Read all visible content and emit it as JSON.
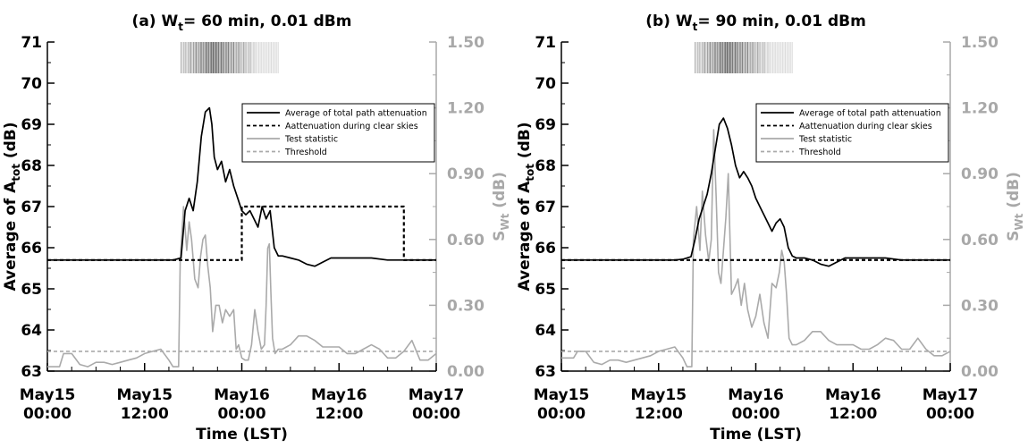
{
  "chart_data": [
    {
      "type": "line",
      "title_prefix": "(a) W",
      "title_sub": "t",
      "title_suffix": "= 60 min, 0.01 dBm",
      "xlabel": "Time (LST)",
      "ylabel_left": {
        "main": "Average of A",
        "sub": "tot",
        "unit": " (dB)"
      },
      "ylabel_right": {
        "main": "S",
        "sub": "Wt",
        "unit": " (dB)"
      },
      "x_unit": "hours since May15 00:00",
      "xlim": [
        0,
        48
      ],
      "ylim_left": [
        63,
        71
      ],
      "ylim_right": [
        0,
        1.5
      ],
      "x_ticks": [
        {
          "x": 0,
          "line1": "May15",
          "line2": "00:00"
        },
        {
          "x": 12,
          "line1": "May15",
          "line2": "12:00"
        },
        {
          "x": 24,
          "line1": "May16",
          "line2": "00:00"
        },
        {
          "x": 36,
          "line1": "May16",
          "line2": "12:00"
        },
        {
          "x": 48,
          "line1": "May17",
          "line2": "00:00"
        }
      ],
      "y_ticks_left": [
        "63",
        "64",
        "65",
        "66",
        "67",
        "68",
        "69",
        "70",
        "71"
      ],
      "y_ticks_right": [
        "0.00",
        "0.30",
        "0.60",
        "0.90",
        "1.20",
        "1.50"
      ],
      "legend": [
        {
          "label": "Average of total path attenuation",
          "color": "#000000",
          "dash": ""
        },
        {
          "label": "Aattenuation during clear skies",
          "color": "#000000",
          "dash": "4,3"
        },
        {
          "label": "Test statistic",
          "color": "#aaaaaa",
          "dash": ""
        },
        {
          "label": "Threshold",
          "color": "#aaaaaa",
          "dash": "4,3"
        }
      ],
      "legend_position": "upper-right",
      "rain_band_hours": [
        16.5,
        28.5
      ],
      "series": [
        {
          "axis": "left",
          "color": "#000000",
          "dash": "",
          "x": [
            0,
            2,
            4,
            6,
            8,
            10,
            12,
            14,
            15.5,
            16.5,
            17,
            17.5,
            18,
            18.5,
            19,
            19.5,
            20,
            20.3,
            20.6,
            21,
            21.5,
            22,
            22.5,
            23,
            23.5,
            24,
            24.5,
            25,
            25.5,
            26,
            26.5,
            27,
            27.5,
            28,
            28.5,
            29,
            30,
            31,
            32,
            33,
            34,
            35,
            36,
            38,
            40,
            42,
            44,
            46,
            48
          ],
          "y": [
            65.7,
            65.7,
            65.7,
            65.7,
            65.7,
            65.7,
            65.7,
            65.7,
            65.7,
            65.75,
            66.9,
            67.2,
            66.9,
            67.6,
            68.7,
            69.3,
            69.4,
            69.0,
            68.2,
            67.9,
            68.1,
            67.6,
            67.9,
            67.5,
            67.2,
            66.9,
            66.8,
            66.9,
            66.7,
            66.5,
            67.0,
            66.7,
            66.9,
            66.0,
            65.8,
            65.8,
            65.75,
            65.7,
            65.6,
            65.55,
            65.65,
            65.75,
            65.75,
            65.75,
            65.75,
            65.7,
            65.7,
            65.7,
            65.7
          ]
        },
        {
          "axis": "left",
          "color": "#000000",
          "dash": "4,3",
          "x": [
            0,
            24,
            24,
            44,
            44,
            48
          ],
          "y": [
            65.7,
            65.7,
            67.0,
            67.0,
            65.7,
            65.7
          ]
        },
        {
          "axis": "right",
          "color": "#aaaaaa",
          "dash": "",
          "x": [
            0,
            1,
            1.5,
            2,
            3,
            4,
            5,
            6,
            7,
            8,
            9,
            10,
            11,
            12,
            13,
            14,
            15,
            15.5,
            16.2,
            16.4,
            16.8,
            17.2,
            17.5,
            17.8,
            18.2,
            18.6,
            18.9,
            19.2,
            19.5,
            19.8,
            20.1,
            20.4,
            20.8,
            21.2,
            21.6,
            22,
            22.5,
            23,
            23.3,
            23.6,
            24,
            24.4,
            24.8,
            25.2,
            25.6,
            26,
            26.4,
            26.8,
            27,
            27.2,
            27.4,
            27.6,
            27.8,
            28.1,
            28.5,
            29,
            30,
            31,
            32,
            33,
            34,
            35,
            36,
            37,
            38,
            39,
            40,
            41,
            42,
            43,
            44,
            45,
            46,
            47,
            48
          ],
          "y": [
            0.02,
            0.02,
            0.02,
            0.08,
            0.08,
            0.03,
            0.02,
            0.04,
            0.04,
            0.03,
            0.04,
            0.05,
            0.06,
            0.08,
            0.09,
            0.1,
            0.05,
            0.02,
            0.02,
            0.5,
            0.75,
            0.55,
            0.68,
            0.6,
            0.42,
            0.38,
            0.52,
            0.6,
            0.62,
            0.48,
            0.38,
            0.18,
            0.3,
            0.3,
            0.22,
            0.28,
            0.25,
            0.28,
            0.1,
            0.12,
            0.06,
            0.05,
            0.05,
            0.12,
            0.28,
            0.18,
            0.1,
            0.12,
            0.3,
            0.56,
            0.58,
            0.35,
            0.15,
            0.08,
            0.1,
            0.1,
            0.12,
            0.16,
            0.16,
            0.14,
            0.11,
            0.11,
            0.11,
            0.08,
            0.08,
            0.1,
            0.12,
            0.1,
            0.06,
            0.06,
            0.09,
            0.14,
            0.05,
            0.05,
            0.08
          ]
        },
        {
          "axis": "right",
          "color": "#aaaaaa",
          "dash": "4,3",
          "x": [
            0,
            48
          ],
          "y": [
            0.09,
            0.09
          ]
        }
      ]
    },
    {
      "type": "line",
      "title_prefix": "(b) W",
      "title_sub": "t",
      "title_suffix": "= 90 min, 0.01 dBm",
      "xlabel": "Time (LST)",
      "ylabel_left": {
        "main": "Average of A",
        "sub": "tot",
        "unit": " (dB)"
      },
      "ylabel_right": {
        "main": "S",
        "sub": "Wt",
        "unit": " (dB)"
      },
      "x_unit": "hours since May15 00:00",
      "xlim": [
        0,
        48
      ],
      "ylim_left": [
        63,
        71
      ],
      "ylim_right": [
        0,
        1.5
      ],
      "x_ticks": [
        {
          "x": 0,
          "line1": "May15",
          "line2": "00:00"
        },
        {
          "x": 12,
          "line1": "May15",
          "line2": "12:00"
        },
        {
          "x": 24,
          "line1": "May16",
          "line2": "00:00"
        },
        {
          "x": 36,
          "line1": "May16",
          "line2": "12:00"
        },
        {
          "x": 48,
          "line1": "May17",
          "line2": "00:00"
        }
      ],
      "y_ticks_left": [
        "63",
        "64",
        "65",
        "66",
        "67",
        "68",
        "69",
        "70",
        "71"
      ],
      "y_ticks_right": [
        "0.00",
        "0.30",
        "0.60",
        "0.90",
        "1.20",
        "1.50"
      ],
      "legend": [
        {
          "label": "Average of total path attenuation",
          "color": "#000000",
          "dash": ""
        },
        {
          "label": "Aattenuation during clear skies",
          "color": "#000000",
          "dash": "4,3"
        },
        {
          "label": "Test statistic",
          "color": "#aaaaaa",
          "dash": ""
        },
        {
          "label": "Threshold",
          "color": "#aaaaaa",
          "dash": "4,3"
        }
      ],
      "legend_position": "upper-right",
      "rain_band_hours": [
        16.5,
        28.5
      ],
      "series": [
        {
          "axis": "left",
          "color": "#000000",
          "dash": "",
          "x": [
            0,
            2,
            4,
            6,
            8,
            10,
            12,
            14,
            15,
            16,
            16.5,
            17,
            17.5,
            18,
            18.5,
            19,
            19.5,
            20,
            20.5,
            21,
            21.5,
            22,
            22.5,
            23,
            23.5,
            24,
            24.5,
            25,
            25.5,
            26,
            26.5,
            27,
            27.5,
            28,
            28.5,
            29,
            30,
            31,
            32,
            33,
            34,
            35,
            36,
            38,
            40,
            42,
            44,
            46,
            48
          ],
          "y": [
            65.7,
            65.7,
            65.7,
            65.7,
            65.7,
            65.7,
            65.7,
            65.7,
            65.72,
            65.78,
            66.2,
            66.7,
            67.0,
            67.3,
            67.8,
            68.4,
            69.0,
            69.15,
            68.9,
            68.5,
            68.0,
            67.7,
            67.85,
            67.7,
            67.5,
            67.2,
            67.0,
            66.8,
            66.6,
            66.4,
            66.6,
            66.7,
            66.5,
            66.0,
            65.8,
            65.75,
            65.75,
            65.7,
            65.6,
            65.55,
            65.65,
            65.75,
            65.75,
            65.75,
            65.75,
            65.7,
            65.7,
            65.7,
            65.7
          ]
        },
        {
          "axis": "left",
          "color": "#000000",
          "dash": "4,3",
          "x": [
            0,
            48
          ],
          "y": [
            65.7,
            65.7
          ]
        },
        {
          "axis": "right",
          "color": "#aaaaaa",
          "dash": "",
          "x": [
            0,
            1,
            1.5,
            2,
            3,
            4,
            5,
            6,
            7,
            8,
            9,
            10,
            11,
            12,
            13,
            14,
            15,
            15.5,
            16.1,
            16.3,
            16.7,
            17.1,
            17.4,
            17.8,
            18.2,
            18.5,
            18.8,
            19.1,
            19.4,
            19.7,
            20,
            20.3,
            20.6,
            21,
            21.4,
            21.8,
            22.2,
            22.6,
            23,
            23.5,
            24,
            24.5,
            25,
            25.5,
            26,
            26.5,
            26.9,
            27.2,
            27.5,
            27.8,
            28.1,
            28.5,
            29,
            30,
            31,
            32,
            33,
            34,
            35,
            36,
            37,
            38,
            39,
            40,
            41,
            42,
            43,
            44,
            45,
            46,
            47,
            48
          ],
          "y": [
            0.06,
            0.06,
            0.06,
            0.09,
            0.09,
            0.04,
            0.03,
            0.05,
            0.05,
            0.04,
            0.05,
            0.06,
            0.07,
            0.09,
            0.1,
            0.11,
            0.06,
            0.02,
            0.02,
            0.6,
            0.75,
            0.55,
            0.82,
            0.62,
            0.5,
            0.6,
            1.1,
            0.8,
            0.45,
            0.4,
            0.55,
            0.7,
            0.9,
            0.35,
            0.38,
            0.42,
            0.3,
            0.4,
            0.28,
            0.2,
            0.25,
            0.35,
            0.22,
            0.15,
            0.4,
            0.38,
            0.45,
            0.55,
            0.5,
            0.35,
            0.15,
            0.12,
            0.12,
            0.14,
            0.18,
            0.18,
            0.14,
            0.12,
            0.12,
            0.12,
            0.1,
            0.1,
            0.12,
            0.15,
            0.14,
            0.1,
            0.1,
            0.15,
            0.1,
            0.07,
            0.07,
            0.09
          ]
        },
        {
          "axis": "right",
          "color": "#aaaaaa",
          "dash": "4,3",
          "x": [
            0,
            48
          ],
          "y": [
            0.09,
            0.09
          ]
        }
      ]
    }
  ]
}
